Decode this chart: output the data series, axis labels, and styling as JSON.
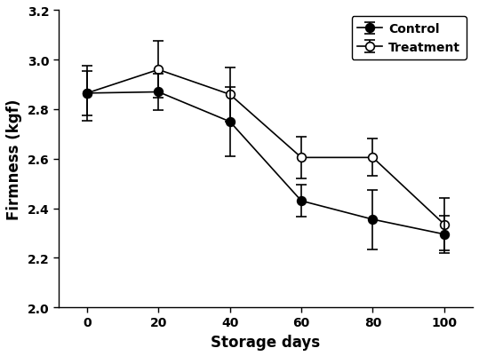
{
  "x": [
    0,
    20,
    40,
    60,
    80,
    100
  ],
  "control_y": [
    2.865,
    2.87,
    2.75,
    2.43,
    2.355,
    2.295
  ],
  "control_yerr": [
    0.11,
    0.075,
    0.14,
    0.065,
    0.12,
    0.075
  ],
  "treatment_y": [
    2.865,
    2.96,
    2.86,
    2.605,
    2.605,
    2.335
  ],
  "treatment_yerr": [
    0.09,
    0.115,
    0.11,
    0.085,
    0.075,
    0.105
  ],
  "xlabel": "Storage days",
  "ylabel": "Firmness (kgf)",
  "ylim": [
    2.0,
    3.2
  ],
  "yticks": [
    2.0,
    2.2,
    2.4,
    2.6,
    2.8,
    3.0,
    3.2
  ],
  "control_label": "Control",
  "treatment_label": "Treatment",
  "figsize": [
    5.39,
    4.02
  ],
  "dpi": 100
}
